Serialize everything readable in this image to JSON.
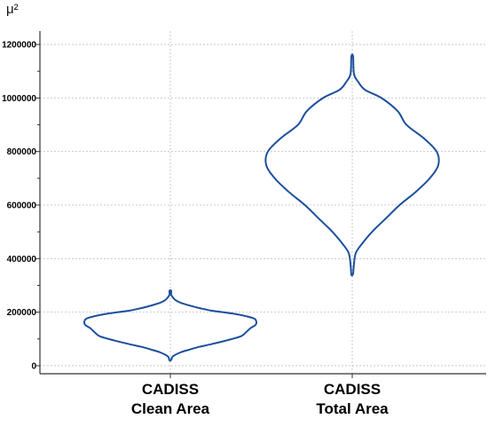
{
  "chart_data": {
    "type": "violin",
    "y_unit_label": "μ²",
    "categories": [
      {
        "line1": "CADISS",
        "line2": "Clean Area"
      },
      {
        "line1": "CADISS",
        "line2": "Total Area"
      }
    ],
    "ylim": [
      -30000,
      1250000
    ],
    "yticks": [
      0,
      200000,
      400000,
      600000,
      800000,
      1000000,
      1200000
    ],
    "ytick_labels": [
      "0",
      "200000",
      "400000",
      "600000",
      "800000",
      "1000000",
      "1200000"
    ],
    "y_minor_step": 100000,
    "grid": true,
    "series_color": "#1c4f9c",
    "violins": [
      {
        "category_index": 0,
        "min": 20000,
        "max": 280000,
        "profile": [
          [
            20000,
            0.01
          ],
          [
            35000,
            0.03
          ],
          [
            50000,
            0.12
          ],
          [
            60000,
            0.22
          ],
          [
            70000,
            0.33
          ],
          [
            80000,
            0.47
          ],
          [
            95000,
            0.66
          ],
          [
            110000,
            0.82
          ],
          [
            125000,
            0.88
          ],
          [
            140000,
            0.93
          ],
          [
            150000,
            0.98
          ],
          [
            160000,
            1.0
          ],
          [
            175000,
            0.98
          ],
          [
            185000,
            0.88
          ],
          [
            195000,
            0.72
          ],
          [
            205000,
            0.49
          ],
          [
            215000,
            0.34
          ],
          [
            225000,
            0.22
          ],
          [
            235000,
            0.12
          ],
          [
            245000,
            0.06
          ],
          [
            255000,
            0.03
          ],
          [
            265000,
            0.01
          ],
          [
            280000,
            0.01
          ]
        ]
      },
      {
        "category_index": 1,
        "min": 340000,
        "max": 1155000,
        "profile": [
          [
            340000,
            0.01
          ],
          [
            380000,
            0.02
          ],
          [
            420000,
            0.04
          ],
          [
            450000,
            0.1
          ],
          [
            500000,
            0.23
          ],
          [
            550000,
            0.39
          ],
          [
            600000,
            0.55
          ],
          [
            650000,
            0.74
          ],
          [
            700000,
            0.9
          ],
          [
            750000,
            1.0
          ],
          [
            800000,
            0.98
          ],
          [
            850000,
            0.83
          ],
          [
            900000,
            0.63
          ],
          [
            950000,
            0.53
          ],
          [
            1000000,
            0.34
          ],
          [
            1030000,
            0.15
          ],
          [
            1060000,
            0.07
          ],
          [
            1090000,
            0.02
          ],
          [
            1155000,
            0.01
          ]
        ]
      }
    ]
  }
}
